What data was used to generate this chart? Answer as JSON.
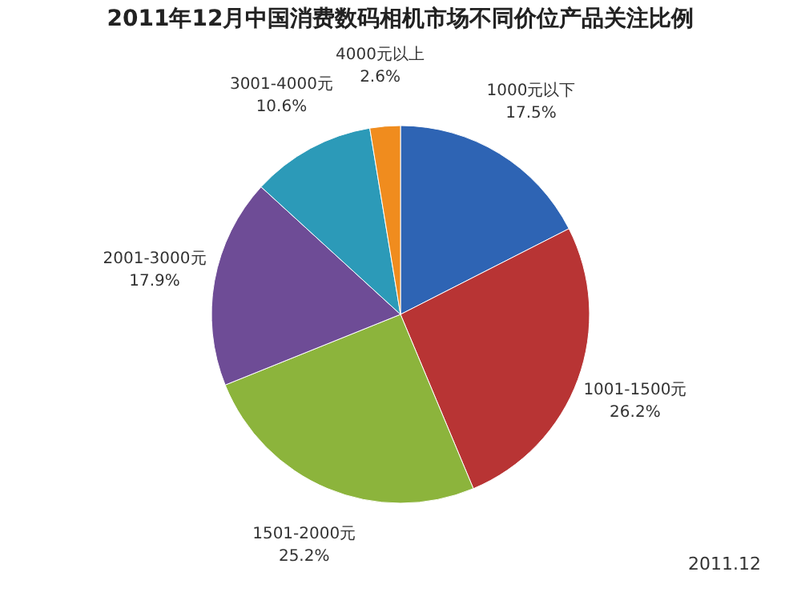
{
  "chart_data": {
    "type": "pie",
    "title": "2011年12月中国消费数码相机市场不同价位产品关注比例",
    "categories": [
      "1000元以下",
      "1001-1500元",
      "1501-2000元",
      "2001-3000元",
      "3001-4000元",
      "4000元以上"
    ],
    "values": [
      17.5,
      26.2,
      25.2,
      17.9,
      10.6,
      2.6
    ],
    "value_labels": [
      "17.5%",
      "26.2%",
      "25.2%",
      "17.9%",
      "10.6%",
      "2.6%"
    ],
    "colors": [
      "#2e64b4",
      "#b83434",
      "#8cb43c",
      "#6e4c96",
      "#2c9ab8",
      "#f08c1e"
    ],
    "legend": false,
    "annotations": [
      "2011.12"
    ]
  }
}
